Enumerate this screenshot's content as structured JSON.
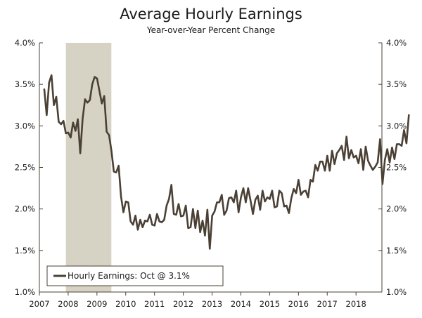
{
  "chart_data": {
    "type": "line",
    "title": "Average Hourly Earnings",
    "subtitle": "Year-over-Year Percent Change",
    "xlabel": "",
    "ylabel": "",
    "xlim": [
      2007,
      2018.9
    ],
    "ylim": [
      1.0,
      4.0
    ],
    "x_ticks": [
      {
        "label": "2007",
        "value": 2007
      },
      {
        "label": "2008",
        "value": 2008
      },
      {
        "label": "2009",
        "value": 2009
      },
      {
        "label": "2010",
        "value": 2010
      },
      {
        "label": "2011",
        "value": 2011
      },
      {
        "label": "2012",
        "value": 2012
      },
      {
        "label": "2013",
        "value": 2013
      },
      {
        "label": "2014",
        "value": 2014
      },
      {
        "label": "2015",
        "value": 2015
      },
      {
        "label": "2016",
        "value": 2016
      },
      {
        "label": "2017",
        "value": 2017
      },
      {
        "label": "2018",
        "value": 2018
      }
    ],
    "y_ticks": [
      {
        "label": "1.0%",
        "value": 1.0
      },
      {
        "label": "1.5%",
        "value": 1.5
      },
      {
        "label": "2.0%",
        "value": 2.0
      },
      {
        "label": "2.5%",
        "value": 2.5
      },
      {
        "label": "3.0%",
        "value": 3.0
      },
      {
        "label": "3.5%",
        "value": 3.5
      },
      {
        "label": "4.0%",
        "value": 4.0
      }
    ],
    "recession": {
      "start": 2007.92,
      "end": 2009.5
    },
    "grid": false,
    "legend": {
      "position": "bottom-left",
      "text": "Hourly Earnings: Oct @ 3.1%"
    },
    "colors": {
      "line": "#4a4035",
      "recession": "#d6d3c4",
      "axis": "#4a4035",
      "background": "#ffffff"
    },
    "series": [
      {
        "name": "Hourly Earnings",
        "x_start": 2007.17,
        "step": 0.08333,
        "values": [
          3.44,
          3.13,
          3.52,
          3.61,
          3.25,
          3.35,
          3.05,
          3.02,
          3.06,
          2.91,
          2.92,
          2.86,
          3.04,
          2.94,
          3.08,
          2.67,
          3.09,
          3.32,
          3.28,
          3.31,
          3.5,
          3.59,
          3.57,
          3.42,
          3.27,
          3.36,
          2.93,
          2.89,
          2.7,
          2.45,
          2.44,
          2.52,
          2.15,
          1.96,
          2.09,
          2.08,
          1.85,
          1.81,
          1.92,
          1.75,
          1.87,
          1.78,
          1.86,
          1.85,
          1.93,
          1.81,
          1.8,
          1.94,
          1.85,
          1.84,
          1.87,
          2.04,
          2.12,
          2.29,
          1.94,
          1.93,
          2.06,
          1.91,
          1.92,
          2.04,
          1.77,
          1.78,
          2.0,
          1.77,
          1.98,
          1.72,
          1.86,
          1.68,
          1.99,
          1.52,
          1.92,
          1.97,
          2.08,
          2.08,
          2.17,
          1.93,
          1.98,
          2.13,
          2.14,
          2.08,
          2.22,
          1.96,
          2.14,
          2.25,
          2.08,
          2.25,
          2.1,
          1.94,
          2.11,
          2.16,
          1.99,
          2.22,
          2.09,
          2.14,
          2.12,
          2.22,
          2.02,
          2.03,
          2.22,
          2.19,
          2.03,
          2.04,
          1.95,
          2.13,
          2.24,
          2.19,
          2.35,
          2.17,
          2.21,
          2.22,
          2.14,
          2.35,
          2.33,
          2.53,
          2.46,
          2.57,
          2.57,
          2.46,
          2.64,
          2.46,
          2.7,
          2.54,
          2.67,
          2.71,
          2.76,
          2.59,
          2.87,
          2.61,
          2.71,
          2.62,
          2.64,
          2.55,
          2.72,
          2.47,
          2.75,
          2.58,
          2.52,
          2.47,
          2.51,
          2.56,
          2.84,
          2.3,
          2.59,
          2.72,
          2.56,
          2.74,
          2.6,
          2.78,
          2.78,
          2.76,
          2.95,
          2.79,
          3.13
        ]
      }
    ]
  }
}
